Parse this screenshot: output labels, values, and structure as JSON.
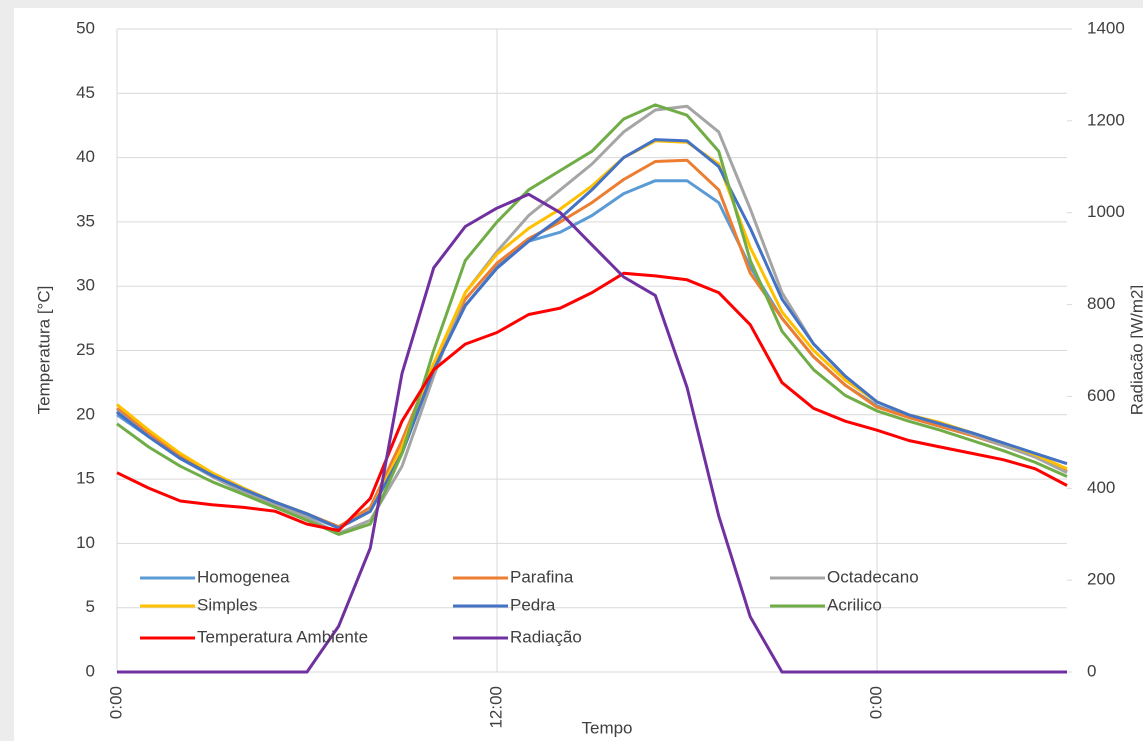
{
  "chart_data": {
    "type": "line",
    "x_label": "Tempo",
    "y_label": "Temperatura [°C]",
    "y2_label": "Radiação [W/m2]",
    "x": [
      0,
      1,
      2,
      3,
      4,
      5,
      6,
      7,
      8,
      9,
      10,
      11,
      12,
      13,
      14,
      15,
      16,
      17,
      18,
      19,
      20,
      21,
      22,
      23,
      24,
      25,
      26,
      27,
      28,
      29,
      30
    ],
    "xlim": [
      0,
      30
    ],
    "xticks": [
      {
        "value": 0,
        "label": "0:00"
      },
      {
        "value": 12,
        "label": "12:00"
      },
      {
        "value": 24,
        "label": "0:00"
      }
    ],
    "ylim": [
      0,
      50
    ],
    "yticks": [
      0,
      5,
      10,
      15,
      20,
      25,
      30,
      35,
      40,
      45,
      50
    ],
    "y2lim": [
      0,
      1400
    ],
    "y2ticks": [
      0,
      200,
      400,
      600,
      800,
      1000,
      1200,
      1400
    ],
    "grid": true,
    "legend": "bottom",
    "series": [
      {
        "name": "Homogenea",
        "color": "#5b9bd5",
        "values": [
          20,
          18.3,
          16.6,
          15.2,
          14,
          13,
          12.2,
          11.2,
          12.5,
          17.5,
          23.5,
          28.5,
          31.5,
          33.5,
          34.2,
          35.5,
          37.2,
          38.2,
          38.2,
          36.5,
          31.5,
          27.5,
          24.5,
          22.3,
          20.7,
          19.8,
          19.1,
          18.4,
          17.6,
          16.8,
          15.8
        ]
      },
      {
        "name": "Parafina",
        "color": "#ed7d31",
        "values": [
          20.5,
          18.6,
          16.8,
          15.4,
          14.2,
          13.2,
          12.3,
          11.3,
          12.8,
          18,
          24,
          29,
          31.8,
          33.7,
          35,
          36.5,
          38.3,
          39.7,
          39.8,
          37.5,
          31,
          27.5,
          24.5,
          22.3,
          20.6,
          19.8,
          19.1,
          18.4,
          17.6,
          16.8,
          15.6
        ]
      },
      {
        "name": "Octadecano",
        "color": "#a5a5a5",
        "values": [
          20.3,
          18.3,
          16.6,
          15.2,
          14,
          13,
          12,
          10.8,
          11.8,
          16,
          23,
          29.5,
          32.7,
          35.5,
          37.5,
          39.5,
          42,
          43.7,
          44,
          42,
          36,
          29.5,
          25.5,
          23,
          21,
          20,
          19.3,
          18.5,
          17.6,
          16.7,
          15.5
        ]
      },
      {
        "name": "Simples",
        "color": "#ffc000",
        "values": [
          20.8,
          18.8,
          17,
          15.5,
          14.3,
          13.2,
          12.3,
          11.2,
          12.5,
          17.5,
          24,
          29.5,
          32.5,
          34.5,
          36,
          37.8,
          40,
          41.3,
          41.2,
          39.5,
          33,
          28,
          25,
          22.7,
          21,
          20,
          19.4,
          18.6,
          17.8,
          16.9,
          15.8
        ]
      },
      {
        "name": "Pedra",
        "color": "#4472c4",
        "values": [
          20.2,
          18.3,
          16.6,
          15.3,
          14.2,
          13.2,
          12.3,
          11.2,
          12.5,
          17,
          23.5,
          28.5,
          31.4,
          33.5,
          35.3,
          37.5,
          40,
          41.4,
          41.3,
          39.3,
          34.5,
          29,
          25.5,
          23,
          21,
          20,
          19.3,
          18.6,
          17.8,
          17,
          16.2
        ]
      },
      {
        "name": "Acrilico",
        "color": "#70ad47",
        "values": [
          19.3,
          17.5,
          16,
          14.8,
          13.8,
          12.8,
          11.8,
          10.7,
          11.5,
          17,
          25,
          32,
          35,
          37.5,
          39,
          40.5,
          43,
          44.1,
          43.3,
          40.5,
          32,
          26.5,
          23.5,
          21.5,
          20.3,
          19.5,
          18.8,
          18,
          17.2,
          16.3,
          15.2
        ]
      },
      {
        "name": "Temperatura Ambiente",
        "color": "#ff0000",
        "values": [
          15.5,
          14.3,
          13.3,
          13,
          12.8,
          12.5,
          11.5,
          11,
          13.5,
          19.5,
          23.5,
          25.5,
          26.4,
          27.8,
          28.3,
          29.5,
          31,
          30.8,
          30.5,
          29.5,
          27,
          22.5,
          20.5,
          19.5,
          18.8,
          18,
          17.5,
          17,
          16.5,
          15.8,
          14.5
        ]
      },
      {
        "name": "Radiação",
        "color": "#7030a0",
        "axis": "y2",
        "values": [
          0,
          0,
          0,
          0,
          0,
          0,
          0,
          100,
          270,
          650,
          880,
          970,
          1010,
          1040,
          1000,
          930,
          860,
          820,
          620,
          340,
          120,
          0,
          0,
          0,
          0,
          0,
          0,
          0,
          0,
          0,
          0
        ]
      }
    ]
  }
}
